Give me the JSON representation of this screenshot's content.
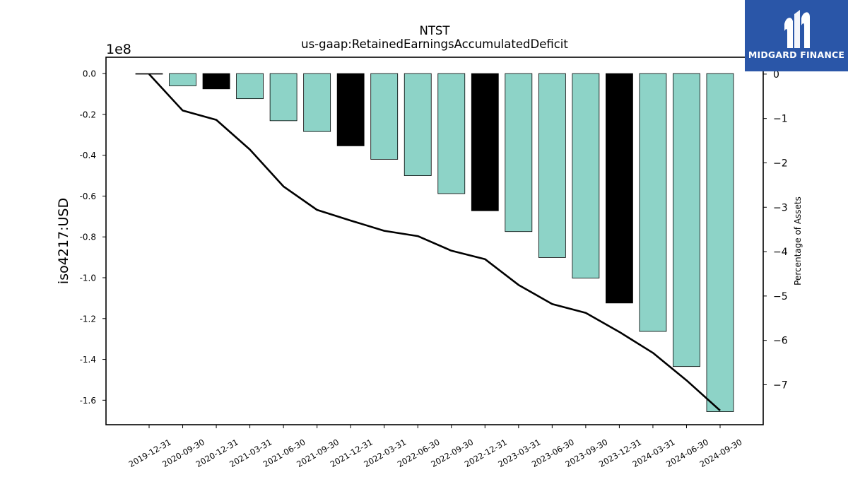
{
  "brand": {
    "name": "MIDGARD FINANCE",
    "logo_icon": "midgard-logo-icon",
    "bg_color": "#2a56a8"
  },
  "chart_data": {
    "type": "bar",
    "title": "NTST",
    "subtitle": "us-gaap:RetainedEarningsAccumulatedDeficit",
    "ylabel": "iso4217:USD",
    "y_offset_label": "1e8",
    "y2label": "Percentage of Assets",
    "ylim": [
      -1.72,
      0.08
    ],
    "y_scale": 100000000,
    "y2lim": [
      -7.9,
      0.38
    ],
    "yticks": [
      0.0,
      -0.2,
      -0.4,
      -0.6,
      -0.8,
      -1.0,
      -1.2,
      -1.4,
      -1.6
    ],
    "y2ticks": [
      0,
      -1,
      -2,
      -3,
      -4,
      -5,
      -6,
      -7
    ],
    "grid": false,
    "colors": {
      "quarter": "#8dd3c7",
      "year_end": "#000000",
      "line": "#000000"
    },
    "categories": [
      "2019-12-31",
      "2020-09-30",
      "2020-12-31",
      "2021-03-31",
      "2021-06-30",
      "2021-09-30",
      "2021-12-31",
      "2022-03-31",
      "2022-06-30",
      "2022-09-30",
      "2022-12-31",
      "2023-03-31",
      "2023-06-30",
      "2023-09-30",
      "2023-12-31",
      "2024-03-31",
      "2024-06-30",
      "2024-09-30"
    ],
    "values": [
      -300000,
      -6000000,
      -7500000,
      -12300000,
      -23100000,
      -28400000,
      -35400000,
      -42000000,
      -50000000,
      -58800000,
      -67200000,
      -77400000,
      -90100000,
      -100200000,
      -112400000,
      -126300000,
      -143500000,
      -165600000
    ],
    "bar_types": [
      "year_end",
      "quarter",
      "year_end",
      "quarter",
      "quarter",
      "quarter",
      "year_end",
      "quarter",
      "quarter",
      "quarter",
      "year_end",
      "quarter",
      "quarter",
      "quarter",
      "year_end",
      "quarter",
      "quarter",
      "quarter"
    ],
    "series": [
      {
        "axis": "secondary",
        "type": "line",
        "values": [
          0.0,
          -0.82,
          -1.03,
          -1.7,
          -2.53,
          -3.06,
          -3.3,
          -3.53,
          -3.65,
          -3.98,
          -4.17,
          -4.75,
          -5.18,
          -5.38,
          -5.81,
          -6.28,
          -6.9,
          -7.58
        ]
      }
    ]
  }
}
